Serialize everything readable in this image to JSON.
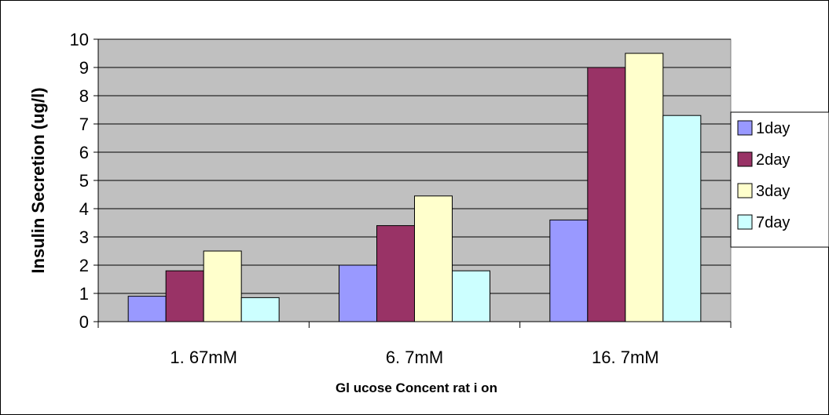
{
  "chart_data": {
    "type": "bar",
    "title": "",
    "xlabel": "Gl ucose Concent rat i on",
    "ylabel": "Insulin Secretion (ug/l)",
    "categories": [
      "1. 67mM",
      "6. 7mM",
      "16. 7mM"
    ],
    "series": [
      {
        "name": "1day",
        "color": "#9999ff",
        "values": [
          0.9,
          2.0,
          3.6
        ]
      },
      {
        "name": "2day",
        "color": "#993366",
        "values": [
          1.8,
          3.4,
          9.0
        ]
      },
      {
        "name": "3day",
        "color": "#ffffcc",
        "values": [
          2.5,
          4.45,
          9.5
        ]
      },
      {
        "name": "7day",
        "color": "#ccffff",
        "values": [
          0.85,
          1.8,
          7.3
        ]
      }
    ],
    "ylim": [
      0,
      10
    ],
    "yticks": [
      0,
      1,
      2,
      3,
      4,
      5,
      6,
      7,
      8,
      9,
      10
    ],
    "grid": true,
    "plot_background": "#c0c0c0",
    "legend_position": "right"
  }
}
